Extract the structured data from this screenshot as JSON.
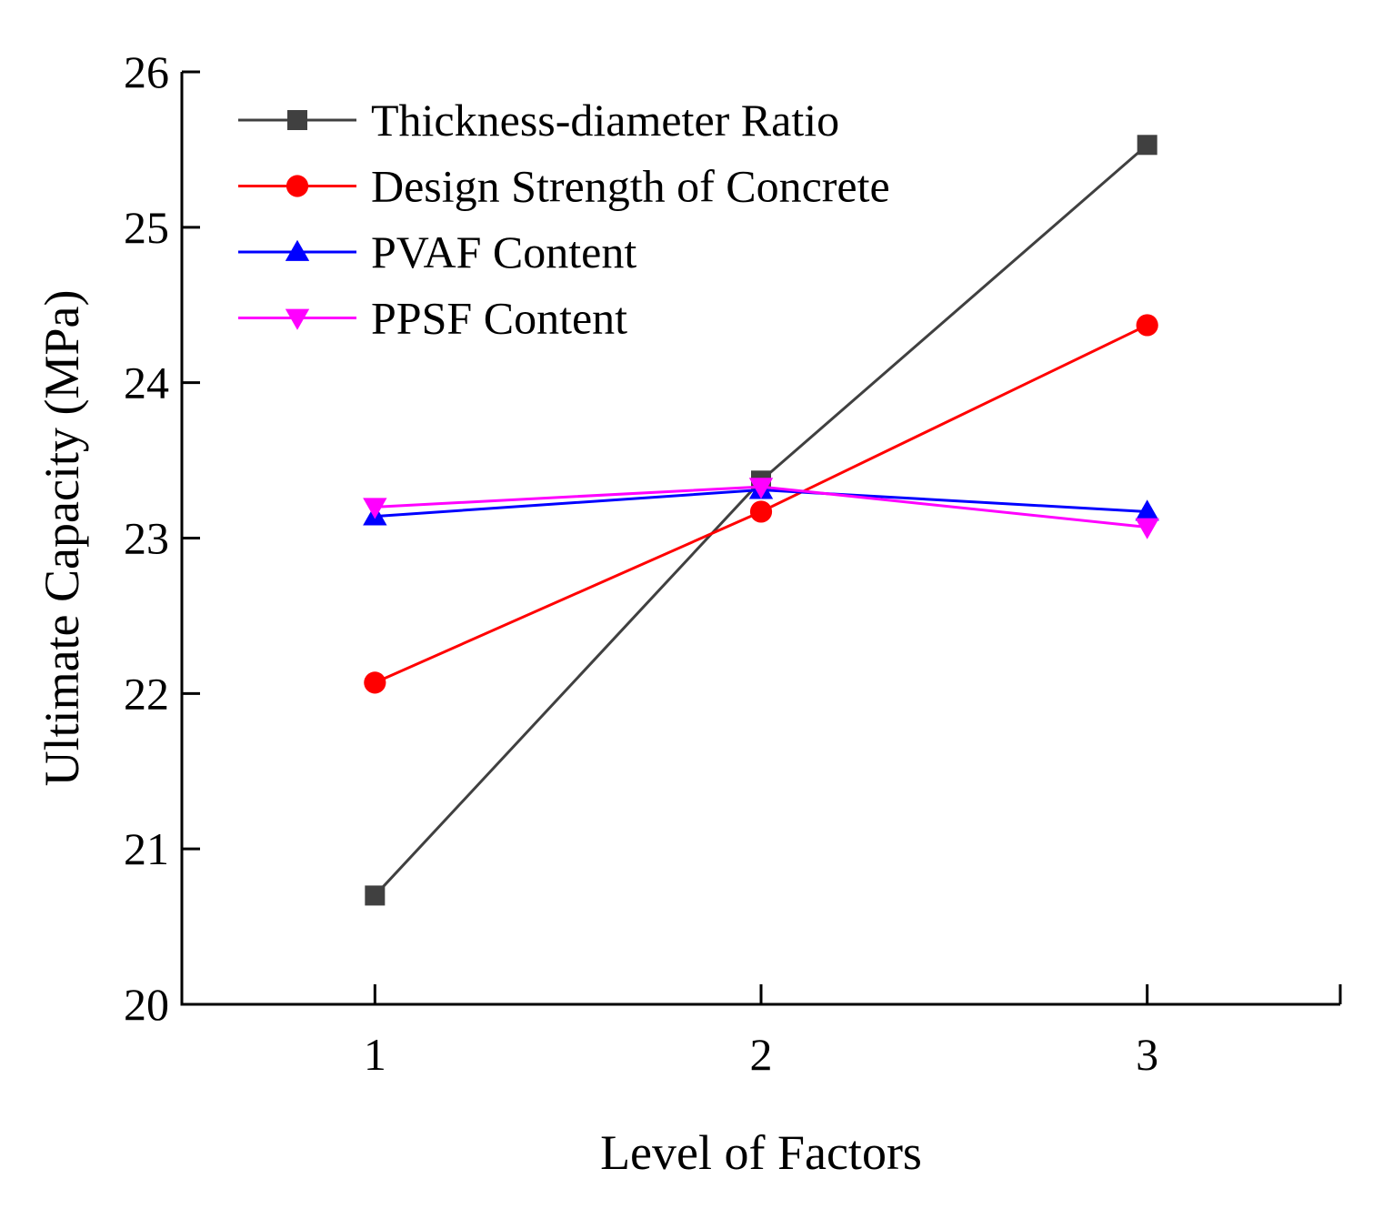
{
  "chart_data": {
    "type": "line",
    "title": "",
    "xlabel": "Level of Factors",
    "ylabel": "Ultimate Capacity (MPa)",
    "x": [
      1,
      2,
      3
    ],
    "x_ticks": [
      "1",
      "2",
      "3"
    ],
    "xlim": [
      0.5,
      3.5
    ],
    "ylim": [
      20,
      26
    ],
    "y_ticks": [
      "20",
      "21",
      "22",
      "23",
      "24",
      "25",
      "26"
    ],
    "grid": false,
    "legend_position": "top-left",
    "series": [
      {
        "name": "Thickness-diameter Ratio",
        "values": [
          20.7,
          23.37,
          25.53
        ],
        "color": "#404040",
        "marker": "square"
      },
      {
        "name": "Design Strength of Concrete",
        "values": [
          22.07,
          23.17,
          24.37
        ],
        "color": "#ff0000",
        "marker": "circle"
      },
      {
        "name": "PVAF Content",
        "values": [
          23.14,
          23.31,
          23.17
        ],
        "color": "#0000ff",
        "marker": "triangle-up"
      },
      {
        "name": "PPSF Content",
        "values": [
          23.2,
          23.33,
          23.07
        ],
        "color": "#ff00ff",
        "marker": "triangle-down"
      }
    ]
  }
}
